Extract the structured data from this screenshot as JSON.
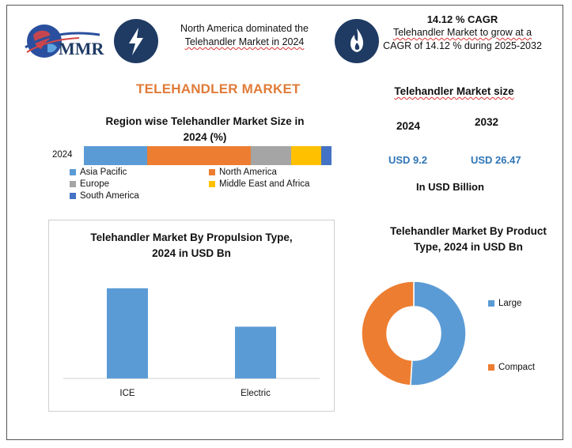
{
  "header": {
    "logo_text": "MMR",
    "stat1_text_line1": "North America dominated the",
    "stat1_text_line2": "Telehandler Market in 2024",
    "stat2_title": "14.12 % CAGR",
    "stat2_text_line1": "Telehandler Market to grow at a",
    "stat2_text_line2": "CAGR of 14.12 % during 2025-2032",
    "icon1": "lightning-icon",
    "icon2": "flame-icon",
    "accent_color": "#1f3b64"
  },
  "main_title": "TELEHANDLER MARKET",
  "market_size": {
    "title": "Telehandler Market size",
    "year1": "2024",
    "year2": "2032",
    "value1": "USD 9.2",
    "value2": "USD 26.47",
    "unit": "In USD Billion"
  },
  "chart_data": [
    {
      "type": "bar",
      "orientation": "horizontal-stacked",
      "title": "Region wise Telehandler Market Size in 2024 (%)",
      "title_line1": "Region wise Telehandler Market Size in",
      "title_line2": "2024 (%)",
      "categories": [
        "2024"
      ],
      "series": [
        {
          "name": "Asia Pacific",
          "values": [
            25
          ],
          "color": "#5b9bd5"
        },
        {
          "name": "North America",
          "values": [
            41
          ],
          "color": "#ed7d31"
        },
        {
          "name": "Europe",
          "values": [
            16
          ],
          "color": "#a5a5a5"
        },
        {
          "name": "Middle East and Africa",
          "values": [
            12
          ],
          "color": "#ffc000"
        },
        {
          "name": "South America",
          "values": [
            4
          ],
          "color": "#4472c4"
        }
      ],
      "xlim": [
        0,
        98
      ],
      "legend": "bottom"
    },
    {
      "type": "bar",
      "title": "Telehandler Market By Propulsion Type, 2024 in USD Bn",
      "title_line1": "Telehandler Market By Propulsion Type,",
      "title_line2": "2024 in USD Bn",
      "categories": [
        "ICE",
        "Electric"
      ],
      "values": [
        5.4,
        3.1
      ],
      "ylim": [
        0,
        7
      ],
      "color": "#5b9bd5",
      "grid": false
    },
    {
      "type": "pie",
      "variant": "donut",
      "title": "Telehandler Market By Product Type, 2024 in USD Bn",
      "title_line1": "Telehandler Market By Product",
      "title_line2": "Type, 2024 in USD Bn",
      "labels": [
        "Large",
        "Compact"
      ],
      "values": [
        51,
        49
      ],
      "colors": [
        "#5b9bd5",
        "#ed7d31"
      ],
      "legend": "right"
    }
  ]
}
